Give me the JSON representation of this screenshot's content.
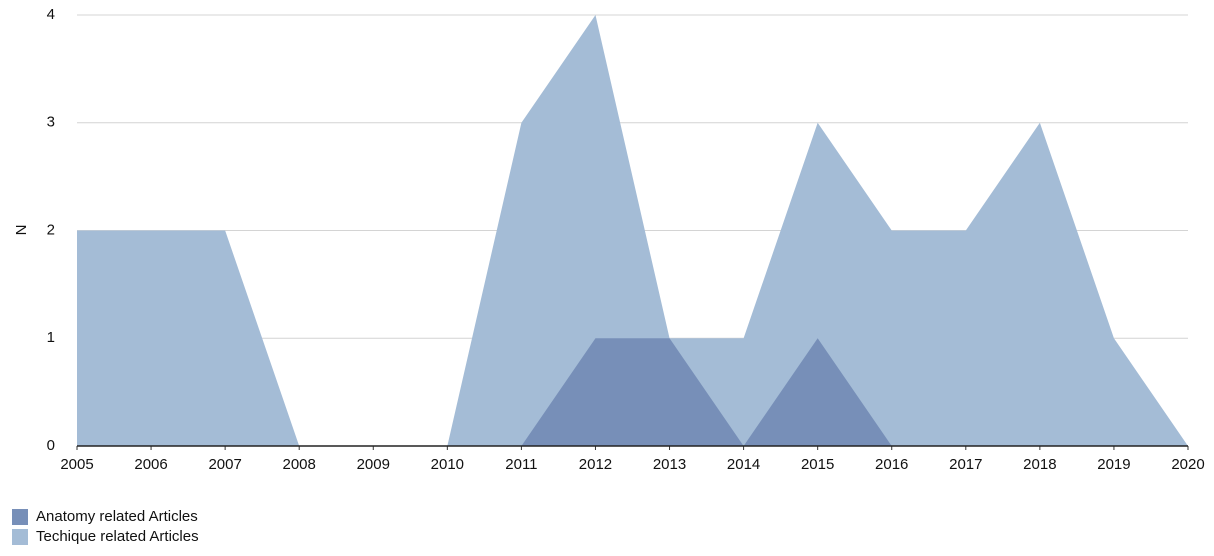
{
  "chart_data": {
    "type": "area",
    "y_label": "N",
    "x": [
      2005,
      2006,
      2007,
      2008,
      2009,
      2010,
      2011,
      2012,
      2013,
      2014,
      2015,
      2016,
      2017,
      2018,
      2019,
      2020
    ],
    "xlim": [
      2005,
      2020
    ],
    "xticks": [
      2005,
      2006,
      2007,
      2008,
      2009,
      2010,
      2011,
      2012,
      2013,
      2014,
      2015,
      2016,
      2017,
      2018,
      2019,
      2020
    ],
    "ylim": [
      0,
      4
    ],
    "yticks": [
      0,
      1,
      2,
      3,
      4
    ],
    "grid": true,
    "legend": "bottom-left",
    "series": [
      {
        "name": "Anatomy related Articles",
        "color": "#778fb8",
        "values": [
          0,
          0,
          0,
          0,
          0,
          0,
          0,
          1,
          1,
          0,
          1,
          0,
          0,
          0,
          0,
          0
        ]
      },
      {
        "name": "Techique related Articles",
        "color": "#a4bcd6",
        "values": [
          2,
          2,
          2,
          0,
          0,
          0,
          3,
          4,
          1,
          1,
          3,
          2,
          2,
          3,
          1,
          0
        ]
      }
    ]
  }
}
